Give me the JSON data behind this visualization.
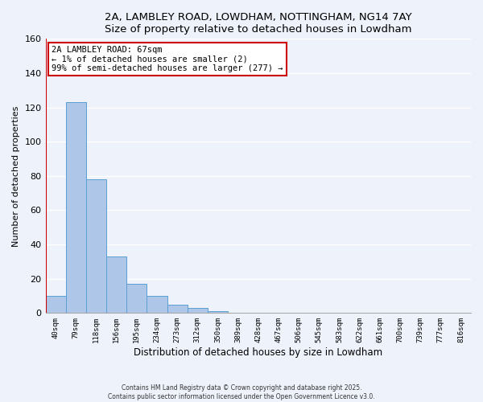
{
  "title": "2A, LAMBLEY ROAD, LOWDHAM, NOTTINGHAM, NG14 7AY",
  "subtitle": "Size of property relative to detached houses in Lowdham",
  "xlabel": "Distribution of detached houses by size in Lowdham",
  "ylabel": "Number of detached properties",
  "bin_labels": [
    "40sqm",
    "79sqm",
    "118sqm",
    "156sqm",
    "195sqm",
    "234sqm",
    "273sqm",
    "312sqm",
    "350sqm",
    "389sqm",
    "428sqm",
    "467sqm",
    "506sqm",
    "545sqm",
    "583sqm",
    "622sqm",
    "661sqm",
    "700sqm",
    "739sqm",
    "777sqm",
    "816sqm"
  ],
  "bar_values": [
    10,
    123,
    78,
    33,
    17,
    10,
    5,
    3,
    1,
    0,
    0,
    0,
    0,
    0,
    0,
    0,
    0,
    0,
    0,
    0,
    0
  ],
  "bar_color": "#aec6e8",
  "bar_edge_color": "#5a9fd4",
  "highlight_color": "#cc0000",
  "annotation_text": "2A LAMBLEY ROAD: 67sqm\n← 1% of detached houses are smaller (2)\n99% of semi-detached houses are larger (277) →",
  "annotation_box_color": "#ffffff",
  "annotation_box_edge": "#cc0000",
  "ylim": [
    0,
    160
  ],
  "yticks": [
    0,
    20,
    40,
    60,
    80,
    100,
    120,
    140,
    160
  ],
  "bg_color": "#eef2fb",
  "grid_color": "#ffffff",
  "footer_line1": "Contains HM Land Registry data © Crown copyright and database right 2025.",
  "footer_line2": "Contains public sector information licensed under the Open Government Licence v3.0."
}
